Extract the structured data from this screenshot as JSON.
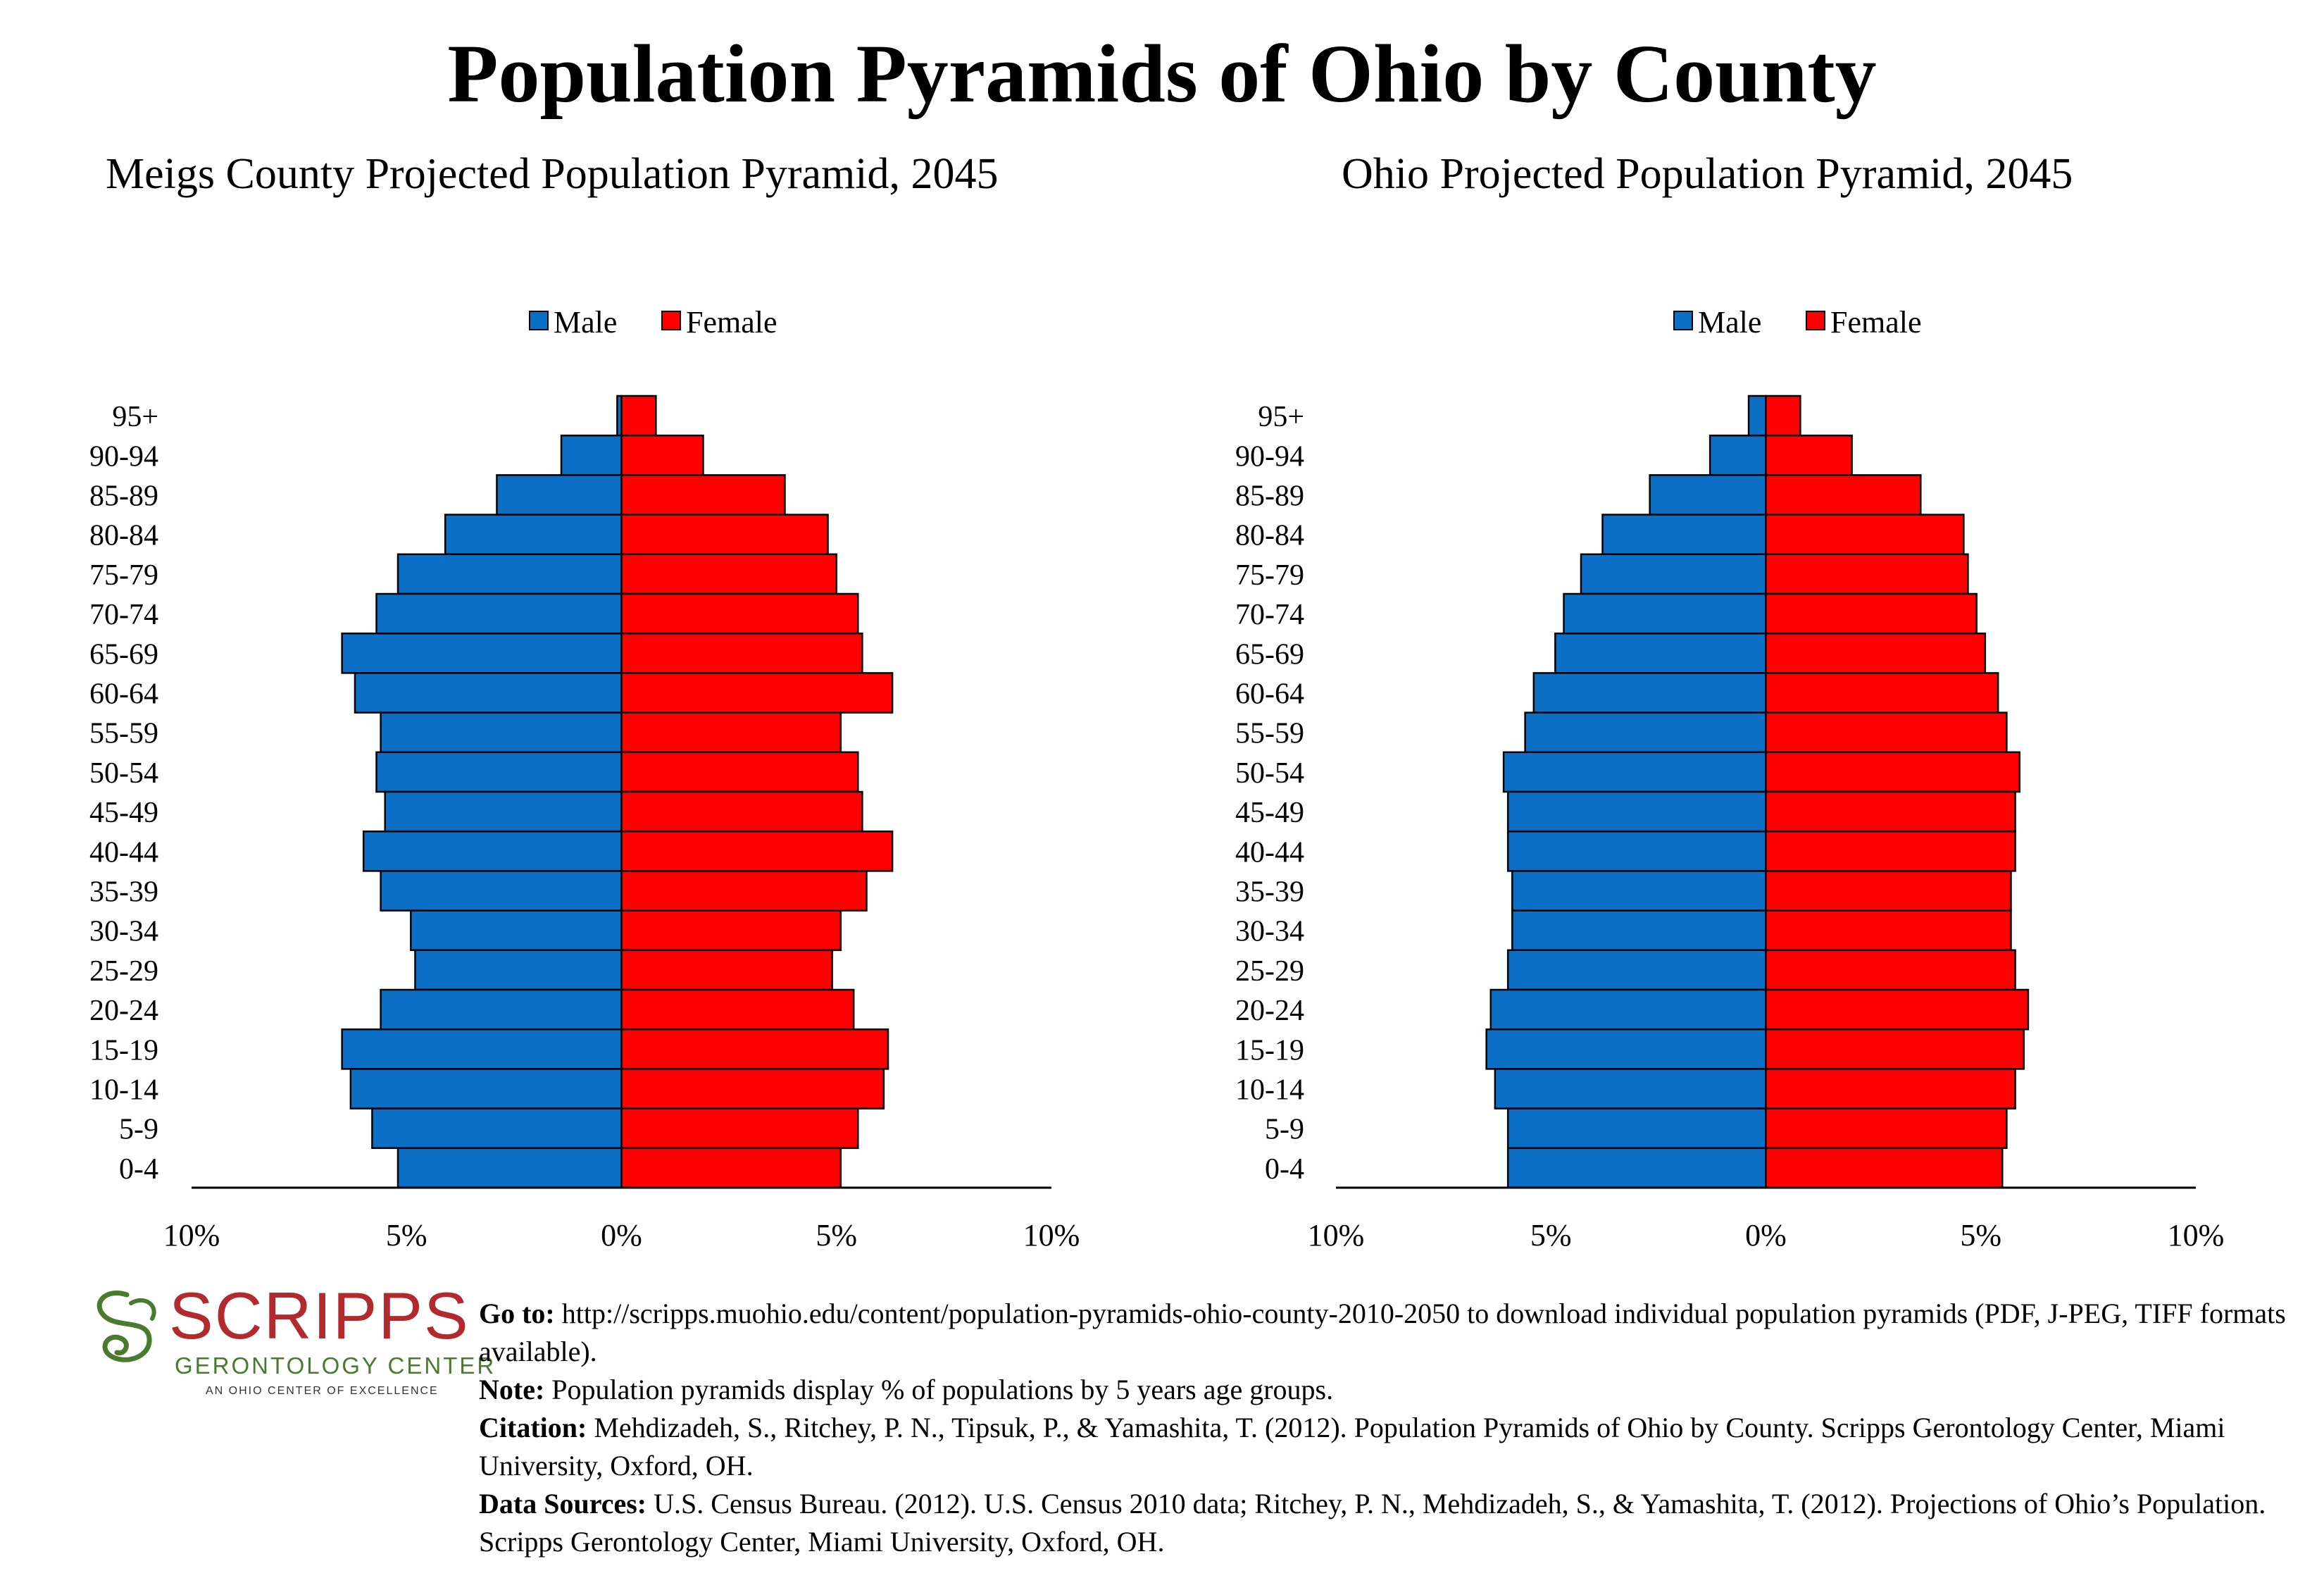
{
  "title": "Population Pyramids of Ohio by County",
  "colors": {
    "male": "#0b6fc5",
    "female": "#ff0000",
    "logo_red": "#b22a2e",
    "logo_green": "#4a7a2e"
  },
  "chart_data": [
    {
      "type": "bar",
      "orientation": "horizontal-pyramid",
      "title": "Meigs County Projected Population Pyramid, 2045",
      "categories": [
        "95+",
        "90-94",
        "85-89",
        "80-84",
        "75-79",
        "70-74",
        "65-69",
        "60-64",
        "55-59",
        "50-54",
        "45-49",
        "40-44",
        "35-39",
        "30-34",
        "25-29",
        "20-24",
        "15-19",
        "10-14",
        "5-9",
        "0-4"
      ],
      "series": [
        {
          "name": "Male",
          "values": [
            0.1,
            1.4,
            2.9,
            4.1,
            5.2,
            5.7,
            6.5,
            6.2,
            5.6,
            5.7,
            5.5,
            6.0,
            5.6,
            4.9,
            4.8,
            5.6,
            6.5,
            6.3,
            5.8,
            5.2
          ]
        },
        {
          "name": "Female",
          "values": [
            0.8,
            1.9,
            3.8,
            4.8,
            5.0,
            5.5,
            5.6,
            6.3,
            5.1,
            5.5,
            5.6,
            6.3,
            5.7,
            5.1,
            4.9,
            5.4,
            6.2,
            6.1,
            5.5,
            5.1
          ]
        }
      ],
      "xlim": [
        -10,
        10
      ],
      "xticks": [
        "10%",
        "5%",
        "0%",
        "5%",
        "10%"
      ],
      "legend": "top-center"
    },
    {
      "type": "bar",
      "orientation": "horizontal-pyramid",
      "title": "Ohio Projected Population Pyramid, 2045",
      "categories": [
        "95+",
        "90-94",
        "85-89",
        "80-84",
        "75-79",
        "70-74",
        "65-69",
        "60-64",
        "55-59",
        "50-54",
        "45-49",
        "40-44",
        "35-39",
        "30-34",
        "25-29",
        "20-24",
        "15-19",
        "10-14",
        "5-9",
        "0-4"
      ],
      "series": [
        {
          "name": "Male",
          "values": [
            0.4,
            1.3,
            2.7,
            3.8,
            4.3,
            4.7,
            4.9,
            5.4,
            5.6,
            6.1,
            6.0,
            6.0,
            5.9,
            5.9,
            6.0,
            6.4,
            6.5,
            6.3,
            6.0,
            6.0
          ]
        },
        {
          "name": "Female",
          "values": [
            0.8,
            2.0,
            3.6,
            4.6,
            4.7,
            4.9,
            5.1,
            5.4,
            5.6,
            5.9,
            5.8,
            5.8,
            5.7,
            5.7,
            5.8,
            6.1,
            6.0,
            5.8,
            5.6,
            5.5
          ]
        }
      ],
      "xlim": [
        -10,
        10
      ],
      "xticks": [
        "10%",
        "5%",
        "0%",
        "5%",
        "10%"
      ],
      "legend": "top-center"
    }
  ],
  "logo": {
    "name": "SCRIPPS",
    "subtitle": "GERONTOLOGY CENTER",
    "tagline": "AN OHIO CENTER OF EXCELLENCE"
  },
  "notes": {
    "goto_label": "Go to:",
    "goto_text": "http://scripps.muohio.edu/content/population-pyramids-ohio-county-2010-2050 to download individual population pyramids (PDF, J-PEG, TIFF formats available).",
    "note_label": "Note:",
    "note_text": "Population pyramids display % of populations by 5 years age groups.",
    "citation_label": "Citation:",
    "citation_text": "Mehdizadeh, S., Ritchey, P. N., Tipsuk, P., & Yamashita, T. (2012). Population Pyramids of Ohio by County. Scripps Gerontology Center, Miami University, Oxford, OH.",
    "sources_label": "Data Sources:",
    "sources_text": "U.S. Census Bureau. (2012). U.S. Census 2010 data; Ritchey, P. N., Mehdizadeh, S., & Yamashita, T. (2012). Projections of Ohio’s Population. Scripps Gerontology Center, Miami University, Oxford, OH."
  }
}
